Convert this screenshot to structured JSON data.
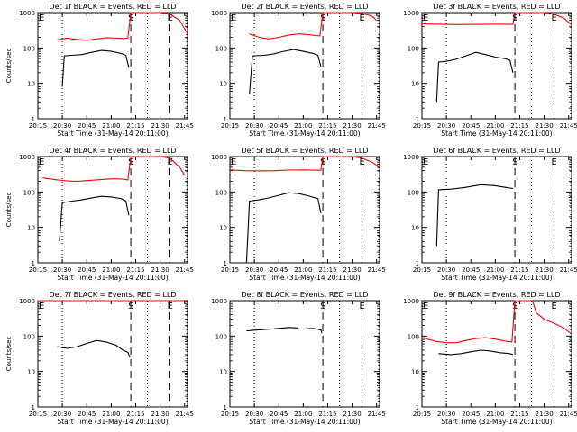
{
  "chart_data": [
    {
      "title": "Det 1f BLACK = Events, RED = LLD",
      "ylabel": "Counts/sec",
      "xlabel": "Start Time (31-May-14 20:11:00)",
      "marks": {
        "E_left": true,
        "S": true,
        "E_right": true
      },
      "series": [
        {
          "name": "Events",
          "color": "#000000",
          "points": [
            [
              20.5,
              8
            ],
            [
              20.52,
              60
            ],
            [
              20.6,
              62
            ],
            [
              20.7,
              65
            ],
            [
              20.8,
              75
            ],
            [
              20.9,
              85
            ],
            [
              21.0,
              80
            ],
            [
              21.1,
              70
            ],
            [
              21.15,
              62
            ],
            [
              21.18,
              28
            ]
          ]
        },
        {
          "name": "LLD",
          "color": "#ff0000",
          "points": [
            [
              20.45,
              170
            ],
            [
              20.55,
              190
            ],
            [
              20.65,
              175
            ],
            [
              20.75,
              165
            ],
            [
              20.85,
              180
            ],
            [
              20.95,
              195
            ],
            [
              21.05,
              190
            ],
            [
              21.12,
              185
            ],
            [
              21.17,
              190
            ],
            [
              21.2,
              1000
            ],
            [
              21.5,
              1000
            ],
            [
              21.6,
              900
            ],
            [
              21.7,
              600
            ],
            [
              21.75,
              350
            ],
            [
              21.78,
              250
            ]
          ]
        }
      ]
    },
    {
      "title": "Det 2f BLACK = Events, RED = LLD",
      "ylabel": "",
      "xlabel": "Start Time (31-May-14 20:11:00)",
      "marks": {
        "E_left": true,
        "S": true,
        "E_right": true
      },
      "series": [
        {
          "name": "Events",
          "color": "#000000",
          "points": [
            [
              20.45,
              5
            ],
            [
              20.48,
              60
            ],
            [
              20.6,
              62
            ],
            [
              20.7,
              68
            ],
            [
              20.8,
              80
            ],
            [
              20.9,
              90
            ],
            [
              21.0,
              80
            ],
            [
              21.1,
              70
            ],
            [
              21.15,
              62
            ],
            [
              21.18,
              30
            ]
          ]
        },
        {
          "name": "LLD",
          "color": "#ff0000",
          "points": [
            [
              20.45,
              250
            ],
            [
              20.55,
              200
            ],
            [
              20.65,
              180
            ],
            [
              20.75,
              200
            ],
            [
              20.85,
              230
            ],
            [
              20.95,
              250
            ],
            [
              21.05,
              240
            ],
            [
              21.12,
              225
            ],
            [
              21.17,
              220
            ],
            [
              21.2,
              1000
            ],
            [
              21.5,
              1000
            ],
            [
              21.6,
              950
            ],
            [
              21.7,
              800
            ],
            [
              21.75,
              600
            ]
          ]
        }
      ]
    },
    {
      "title": "Det 3f BLACK = Events, RED = LLD",
      "ylabel": "",
      "xlabel": "Start Time (31-May-14 20:11:00)",
      "marks": {
        "E_left": true,
        "S": true,
        "E_right": true
      },
      "series": [
        {
          "name": "Events",
          "color": "#000000",
          "points": [
            [
              20.4,
              3
            ],
            [
              20.42,
              40
            ],
            [
              20.5,
              42
            ],
            [
              20.6,
              48
            ],
            [
              20.7,
              60
            ],
            [
              20.8,
              75
            ],
            [
              20.9,
              65
            ],
            [
              21.0,
              55
            ],
            [
              21.1,
              50
            ],
            [
              21.15,
              45
            ],
            [
              21.18,
              20
            ]
          ]
        },
        {
          "name": "LLD",
          "color": "#ff0000",
          "points": [
            [
              20.25,
              480
            ],
            [
              20.4,
              470
            ],
            [
              20.6,
              460
            ],
            [
              20.8,
              465
            ],
            [
              21.0,
              470
            ],
            [
              21.18,
              465
            ],
            [
              21.2,
              1000
            ],
            [
              21.5,
              1000
            ],
            [
              21.6,
              900
            ],
            [
              21.7,
              700
            ],
            [
              21.78,
              450
            ]
          ]
        }
      ]
    },
    {
      "title": "Det 4f BLACK = Events, RED = LLD",
      "ylabel": "Counts/sec",
      "xlabel": "Start Time (31-May-14 20:11:00)",
      "marks": {
        "E_left": true,
        "S": true,
        "E_right": true
      },
      "series": [
        {
          "name": "Events",
          "color": "#000000",
          "points": [
            [
              20.47,
              4
            ],
            [
              20.5,
              50
            ],
            [
              20.6,
              55
            ],
            [
              20.7,
              60
            ],
            [
              20.8,
              68
            ],
            [
              20.9,
              75
            ],
            [
              21.0,
              72
            ],
            [
              21.1,
              65
            ],
            [
              21.15,
              55
            ],
            [
              21.18,
              22
            ]
          ]
        },
        {
          "name": "LLD",
          "color": "#ff0000",
          "points": [
            [
              20.3,
              250
            ],
            [
              20.45,
              220
            ],
            [
              20.55,
              205
            ],
            [
              20.65,
              200
            ],
            [
              20.75,
              210
            ],
            [
              20.85,
              220
            ],
            [
              20.95,
              230
            ],
            [
              21.05,
              235
            ],
            [
              21.12,
              230
            ],
            [
              21.17,
              220
            ],
            [
              21.2,
              1000
            ],
            [
              21.5,
              1000
            ],
            [
              21.6,
              900
            ],
            [
              21.7,
              500
            ],
            [
              21.75,
              300
            ]
          ]
        }
      ]
    },
    {
      "title": "Det 5f BLACK = Events, RED = LLD",
      "ylabel": "",
      "xlabel": "Start Time (31-May-14 20:11:00)",
      "marks": {
        "E_left": true,
        "S": true,
        "E_right": true
      },
      "series": [
        {
          "name": "Events",
          "color": "#000000",
          "points": [
            [
              20.42,
              1
            ],
            [
              20.45,
              55
            ],
            [
              20.55,
              60
            ],
            [
              20.65,
              68
            ],
            [
              20.75,
              80
            ],
            [
              20.85,
              95
            ],
            [
              20.95,
              90
            ],
            [
              21.05,
              78
            ],
            [
              21.15,
              65
            ],
            [
              21.18,
              25
            ]
          ]
        },
        {
          "name": "LLD",
          "color": "#ff0000",
          "points": [
            [
              20.25,
              420
            ],
            [
              20.4,
              400
            ],
            [
              20.55,
              395
            ],
            [
              20.7,
              400
            ],
            [
              20.85,
              415
            ],
            [
              21.0,
              420
            ],
            [
              21.18,
              410
            ],
            [
              21.2,
              1000
            ],
            [
              21.5,
              1000
            ],
            [
              21.6,
              900
            ],
            [
              21.7,
              700
            ],
            [
              21.78,
              500
            ]
          ]
        }
      ]
    },
    {
      "title": "Det 6f BLACK = Events, RED = LLD",
      "ylabel": "",
      "xlabel": "Start Time (31-May-14 20:11:00)",
      "marks": {
        "E_left": true,
        "S": true,
        "E_right": true
      },
      "series": [
        {
          "name": "Events",
          "color": "#000000",
          "points": [
            [
              20.4,
              3
            ],
            [
              20.42,
              115
            ],
            [
              20.55,
              120
            ],
            [
              20.7,
              135
            ],
            [
              20.85,
              160
            ],
            [
              21.0,
              150
            ],
            [
              21.1,
              135
            ],
            [
              21.18,
              125
            ]
          ]
        }
      ]
    },
    {
      "title": "Det 7f BLACK = Events, RED = LLD",
      "ylabel": "Counts/sec",
      "xlabel": "Start Time (31-May-14 20:11:00)",
      "marks": {
        "E_left": true,
        "S": true,
        "E_right": true
      },
      "series": [
        {
          "name": "Events",
          "color": "#000000",
          "points": [
            [
              20.45,
              50
            ],
            [
              20.55,
              45
            ],
            [
              20.65,
              50
            ],
            [
              20.75,
              62
            ],
            [
              20.85,
              75
            ],
            [
              20.95,
              68
            ],
            [
              21.05,
              55
            ],
            [
              21.12,
              40
            ],
            [
              21.17,
              35
            ],
            [
              21.19,
              25
            ]
          ]
        },
        {
          "name": "LLD",
          "color": "#ff0000",
          "points": [
            [
              20.25,
              1000
            ],
            [
              20.5,
              1000
            ],
            [
              20.8,
              1000
            ],
            [
              21.0,
              1000
            ],
            [
              21.18,
              1000
            ],
            [
              21.5,
              1000
            ],
            [
              21.75,
              1000
            ]
          ]
        }
      ]
    },
    {
      "title": "Det 8f BLACK = Events, RED = LLD",
      "ylabel": "",
      "xlabel": "Start Time (31-May-14 20:11:00)",
      "marks": {
        "E_left": false,
        "S": true,
        "E_right": true
      },
      "series": [
        {
          "name": "Events",
          "color": "#000000",
          "points": [
            [
              20.42,
              140
            ],
            [
              20.55,
              150
            ],
            [
              20.7,
              160
            ],
            [
              20.85,
              175
            ],
            [
              20.95,
              170
            ]
          ]
        },
        {
          "name": "Events",
          "color": "#000000",
          "points": [
            [
              21.02,
              160
            ],
            [
              21.1,
              165
            ],
            [
              21.18,
              150
            ],
            [
              21.19,
              120
            ]
          ]
        }
      ]
    },
    {
      "title": "Det 9f BLACK = Events, RED = LLD",
      "ylabel": "",
      "xlabel": "Start Time (31-May-14 20:11:00)",
      "marks": {
        "E_left": true,
        "S": true,
        "E_right": true
      },
      "series": [
        {
          "name": "Events",
          "color": "#000000",
          "points": [
            [
              20.42,
              32
            ],
            [
              20.55,
              30
            ],
            [
              20.65,
              32
            ],
            [
              20.75,
              36
            ],
            [
              20.85,
              40
            ],
            [
              20.95,
              38
            ],
            [
              21.05,
              34
            ],
            [
              21.15,
              32
            ],
            [
              21.18,
              30
            ]
          ]
        },
        {
          "name": "LLD",
          "color": "#ff0000",
          "points": [
            [
              20.25,
              90
            ],
            [
              20.4,
              70
            ],
            [
              20.5,
              65
            ],
            [
              20.6,
              65
            ],
            [
              20.7,
              75
            ],
            [
              20.8,
              85
            ],
            [
              20.9,
              90
            ],
            [
              21.0,
              82
            ],
            [
              21.1,
              72
            ],
            [
              21.17,
              68
            ],
            [
              21.2,
              1000
            ],
            [
              21.38,
              1000
            ],
            [
              21.42,
              450
            ],
            [
              21.5,
              300
            ],
            [
              21.6,
              230
            ],
            [
              21.7,
              170
            ],
            [
              21.77,
              120
            ]
          ]
        }
      ]
    }
  ],
  "axes": {
    "x_range": [
      20.25,
      21.78
    ],
    "x_ticks": [
      {
        "v": 20.25,
        "label": "20:15"
      },
      {
        "v": 20.5,
        "label": "20:30"
      },
      {
        "v": 20.75,
        "label": "20:45"
      },
      {
        "v": 21.0,
        "label": "21:00"
      },
      {
        "v": 21.25,
        "label": "21:15"
      },
      {
        "v": 21.5,
        "label": "21:30"
      },
      {
        "v": 21.75,
        "label": "21:45"
      }
    ],
    "y_range": [
      1,
      1000
    ],
    "y_scale": "log",
    "y_ticks": [
      {
        "v": 1,
        "label": "1"
      },
      {
        "v": 10,
        "label": "10"
      },
      {
        "v": 100,
        "label": "100"
      },
      {
        "v": 1000,
        "label": "1000"
      }
    ],
    "dotted_lines": [
      20.5,
      21.37,
      21.77
    ],
    "dashed_lines": [
      21.2,
      21.6
    ],
    "mark_labels": {
      "E": "E",
      "S": "S"
    }
  }
}
